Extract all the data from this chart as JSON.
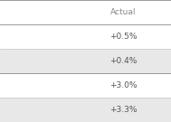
{
  "header": "Actual",
  "rows": [
    "+0.5%",
    "+0.4%",
    "+3.0%",
    "+3.3%"
  ],
  "header_bg": "#ffffff",
  "row_bg_odd": "#ffffff",
  "row_bg_even": "#e8e8e8",
  "line_color_dark": "#888888",
  "line_color_light": "#cccccc",
  "text_color": "#555555",
  "header_text_color": "#888888",
  "font_size": 6.5,
  "header_font_size": 6.5
}
